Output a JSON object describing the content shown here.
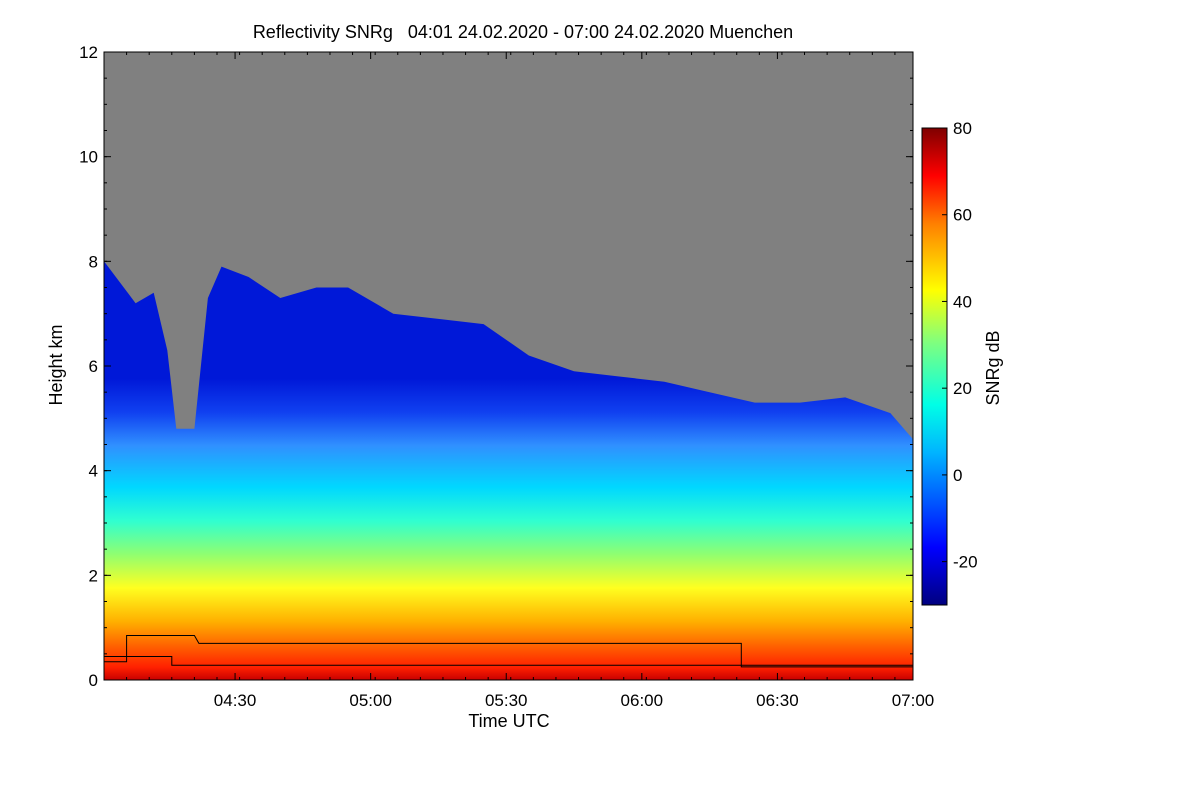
{
  "chart_data": {
    "type": "heatmap",
    "title": "Reflectivity SNRg   04:01 24.02.2020 - 07:00 24.02.2020 Muenchen",
    "xlabel": "Time UTC",
    "ylabel": "Height km",
    "xlim": [
      "04:01",
      "07:00"
    ],
    "ylim": [
      0,
      12
    ],
    "x_ticks": [
      "04:30",
      "05:00",
      "05:30",
      "06:00",
      "06:30",
      "07:00"
    ],
    "y_ticks": [
      0,
      2,
      4,
      6,
      8,
      10,
      12
    ],
    "colorbar": {
      "label": "SNRg dB",
      "range": [
        -30,
        80
      ],
      "ticks": [
        -20,
        0,
        20,
        40,
        60,
        80
      ]
    },
    "background_color": "#808080",
    "cloud_top_profile": [
      {
        "time": "04:01",
        "height_km": 8.0
      },
      {
        "time": "04:08",
        "height_km": 7.2
      },
      {
        "time": "04:12",
        "height_km": 7.4
      },
      {
        "time": "04:15",
        "height_km": 6.3
      },
      {
        "time": "04:17",
        "height_km": 4.8
      },
      {
        "time": "04:21",
        "height_km": 4.8
      },
      {
        "time": "04:24",
        "height_km": 7.3
      },
      {
        "time": "04:27",
        "height_km": 7.9
      },
      {
        "time": "04:33",
        "height_km": 7.7
      },
      {
        "time": "04:40",
        "height_km": 7.3
      },
      {
        "time": "04:48",
        "height_km": 7.5
      },
      {
        "time": "04:55",
        "height_km": 7.5
      },
      {
        "time": "05:05",
        "height_km": 7.0
      },
      {
        "time": "05:15",
        "height_km": 6.9
      },
      {
        "time": "05:25",
        "height_km": 6.8
      },
      {
        "time": "05:35",
        "height_km": 6.2
      },
      {
        "time": "05:45",
        "height_km": 5.9
      },
      {
        "time": "05:55",
        "height_km": 5.8
      },
      {
        "time": "06:05",
        "height_km": 5.7
      },
      {
        "time": "06:15",
        "height_km": 5.5
      },
      {
        "time": "06:25",
        "height_km": 5.3
      },
      {
        "time": "06:35",
        "height_km": 5.3
      },
      {
        "time": "06:45",
        "height_km": 5.4
      },
      {
        "time": "06:55",
        "height_km": 5.1
      },
      {
        "time": "07:00",
        "height_km": 4.6
      }
    ],
    "line_series": [
      {
        "points": [
          {
            "time": "04:01",
            "height_km": 0.35
          },
          {
            "time": "04:06",
            "height_km": 0.35
          },
          {
            "time": "04:06",
            "height_km": 0.5
          },
          {
            "time": "04:06",
            "height_km": 0.85
          },
          {
            "time": "04:21",
            "height_km": 0.85
          },
          {
            "time": "04:22",
            "height_km": 0.7
          },
          {
            "time": "06:22",
            "height_km": 0.7
          },
          {
            "time": "06:22",
            "height_km": 0.25
          },
          {
            "time": "07:00",
            "height_km": 0.25
          }
        ]
      },
      {
        "points": [
          {
            "time": "04:01",
            "height_km": 0.45
          },
          {
            "time": "04:16",
            "height_km": 0.45
          },
          {
            "time": "04:16",
            "height_km": 0.28
          },
          {
            "time": "07:00",
            "height_km": 0.28
          }
        ]
      }
    ]
  }
}
